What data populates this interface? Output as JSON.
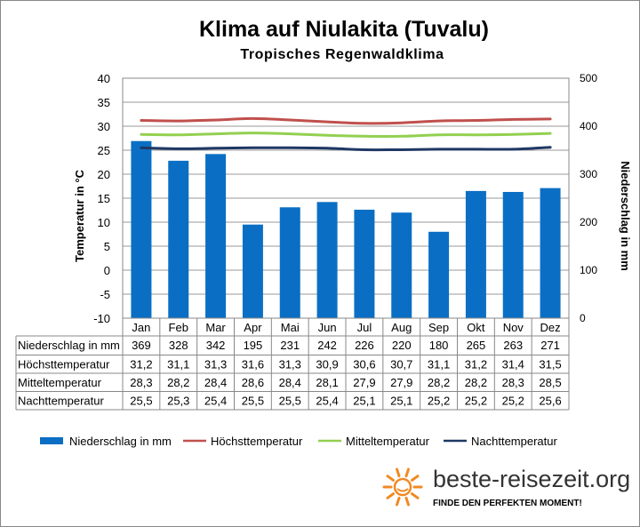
{
  "chart_data": {
    "type": "bar+line",
    "title": "Klima auf Niulakita (Tuvalu)",
    "subtitle": "Tropisches Regenwaldklima",
    "categories": [
      "Jan",
      "Feb",
      "Mar",
      "Apr",
      "Mai",
      "Jun",
      "Jul",
      "Aug",
      "Sep",
      "Okt",
      "Nov",
      "Dez"
    ],
    "ylabel_left": "Temperatur in °C",
    "ylabel_right": "Niederschlag in mm",
    "ylim_left": [
      -10,
      40
    ],
    "yticks_left": [
      "40",
      "35",
      "30",
      "25",
      "20",
      "15",
      "10",
      "5",
      "0",
      "-5",
      "-10"
    ],
    "ylim_right": [
      0,
      500
    ],
    "yticks_right": [
      "500",
      "400",
      "300",
      "200",
      "100",
      "0"
    ],
    "bar_series": {
      "name": "Niederschlag in mm",
      "color": "#0a6fc4",
      "values": [
        369,
        328,
        342,
        195,
        231,
        242,
        226,
        220,
        180,
        265,
        263,
        271
      ],
      "labels": [
        "369",
        "328",
        "342",
        "195",
        "231",
        "242",
        "226",
        "220",
        "180",
        "265",
        "263",
        "271"
      ]
    },
    "line_series": [
      {
        "name": "Höchsttemperatur",
        "color": "#c0504d",
        "values": [
          31.2,
          31.1,
          31.3,
          31.6,
          31.3,
          30.9,
          30.6,
          30.7,
          31.1,
          31.2,
          31.4,
          31.5
        ],
        "labels": [
          "31,2",
          "31,1",
          "31,3",
          "31,6",
          "31,3",
          "30,9",
          "30,6",
          "30,7",
          "31,1",
          "31,2",
          "31,4",
          "31,5"
        ]
      },
      {
        "name": "Mitteltemperatur",
        "color": "#92d050",
        "values": [
          28.3,
          28.2,
          28.4,
          28.6,
          28.4,
          28.1,
          27.9,
          27.9,
          28.2,
          28.2,
          28.3,
          28.5
        ],
        "labels": [
          "28,3",
          "28,2",
          "28,4",
          "28,6",
          "28,4",
          "28,1",
          "27,9",
          "27,9",
          "28,2",
          "28,2",
          "28,3",
          "28,5"
        ]
      },
      {
        "name": "Nachttemperatur",
        "color": "#1f3864",
        "values": [
          25.5,
          25.3,
          25.4,
          25.5,
          25.5,
          25.4,
          25.1,
          25.1,
          25.2,
          25.2,
          25.2,
          25.6
        ],
        "labels": [
          "25,5",
          "25,3",
          "25,4",
          "25,5",
          "25,5",
          "25,4",
          "25,1",
          "25,1",
          "25,2",
          "25,2",
          "25,2",
          "25,6"
        ]
      }
    ]
  },
  "footer": {
    "brand": "beste-reisezeit.org",
    "slogan": "FINDE DEN PERFEKTEN MOMENT!",
    "sun_color": "#f08a24"
  }
}
